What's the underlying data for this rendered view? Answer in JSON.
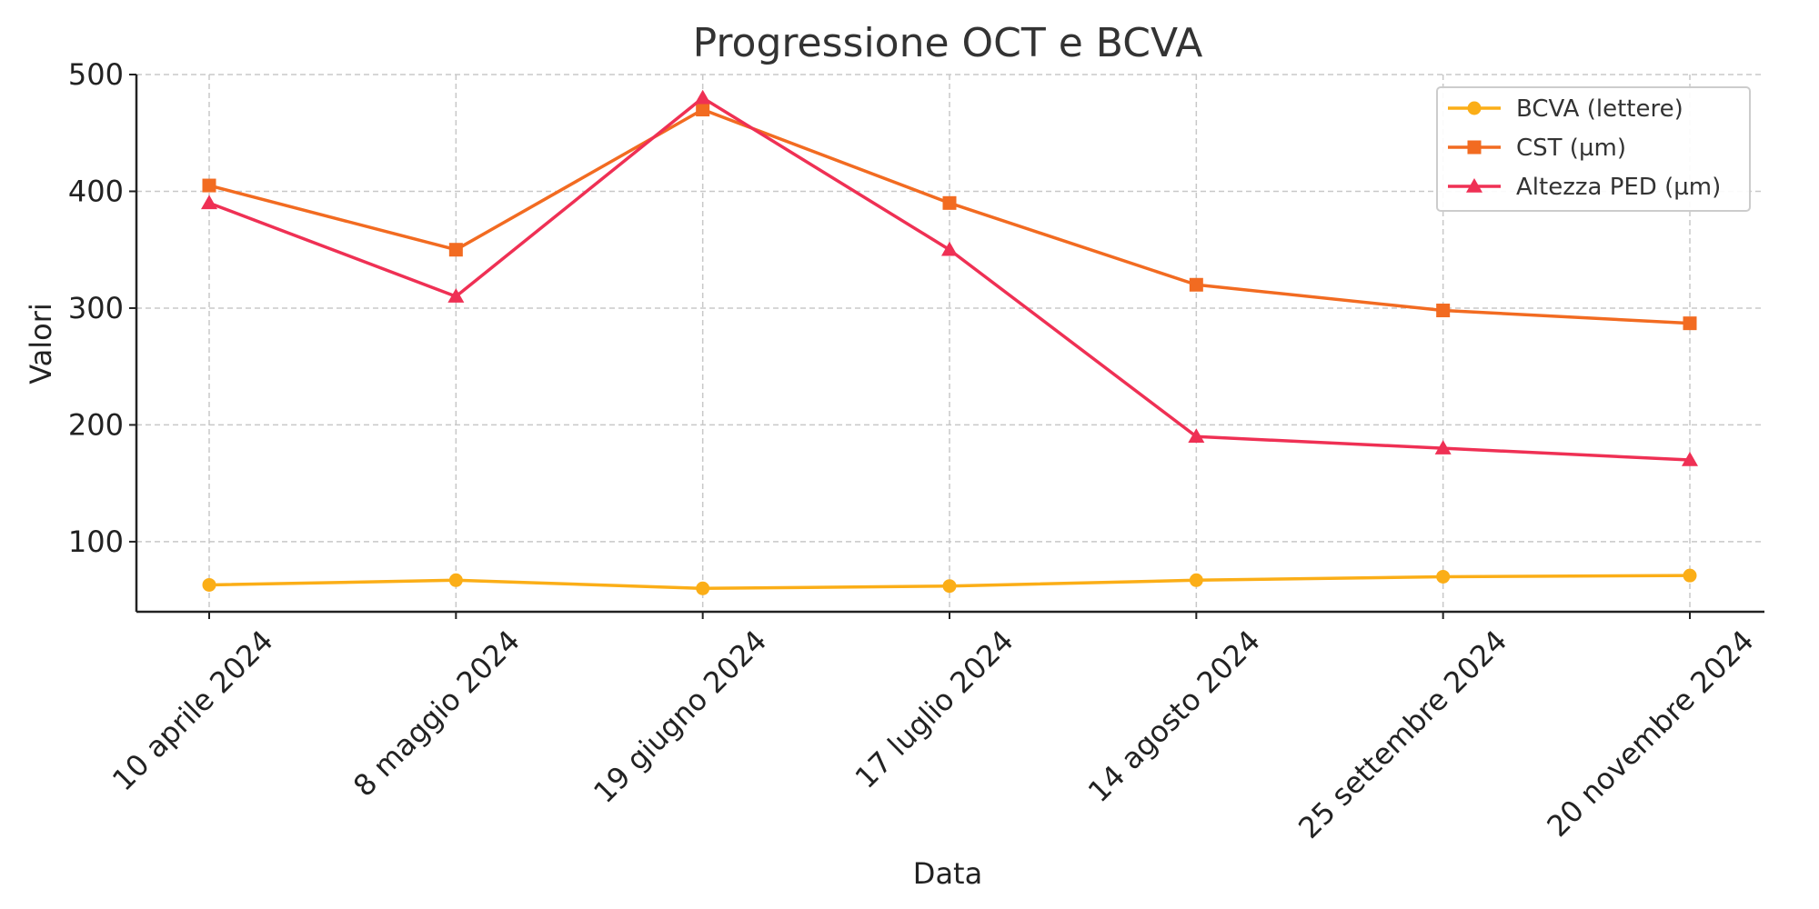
{
  "chart_data": {
    "type": "line",
    "title": "Progressione OCT e BCVA",
    "xlabel": "Data",
    "ylabel": "Valori",
    "categories": [
      "10 aprile 2024",
      "8 maggio 2024",
      "19 giugno 2024",
      "17 luglio 2024",
      "14 agosto 2024",
      "25 settembre 2024",
      "20 novembre 2024"
    ],
    "ylim": [
      40,
      500
    ],
    "yticks": [
      100,
      200,
      300,
      400,
      500
    ],
    "grid": true,
    "legend_position": "top-right",
    "series": [
      {
        "name": "BCVA (lettere)",
        "values": [
          63,
          67,
          60,
          62,
          67,
          70,
          71
        ],
        "color": "#FBAE17",
        "marker": "circle"
      },
      {
        "name": "CST (µm)",
        "values": [
          405,
          350,
          470,
          390,
          320,
          298,
          287
        ],
        "color": "#F26B21",
        "marker": "square"
      },
      {
        "name": "Altezza PED (µm)",
        "values": [
          390,
          310,
          480,
          350,
          190,
          180,
          170
        ],
        "color": "#EF3054",
        "marker": "triangle"
      }
    ]
  }
}
